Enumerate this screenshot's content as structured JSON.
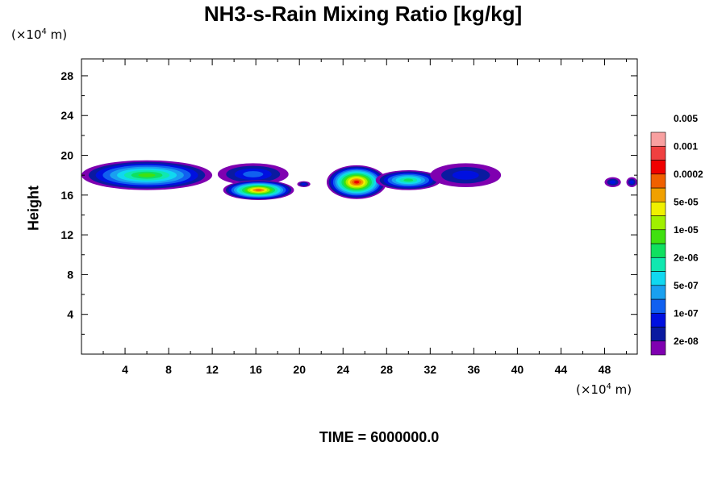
{
  "chart_data": {
    "type": "heatmap",
    "title": "NH3-s-Rain Mixing Ratio [kg/kg]",
    "subtitle": "TIME = 6000000.0",
    "ylabel": "Height",
    "xlabel": "",
    "x_unit_label": "(×10",
    "x_unit_exp": "4",
    "x_unit_suffix": " m)",
    "y_unit_label": "(×10",
    "y_unit_exp": "4",
    "y_unit_suffix": " m)",
    "xlim": [
      0,
      51
    ],
    "ylim": [
      0,
      29.7
    ],
    "x_ticks": [
      4,
      8,
      12,
      16,
      20,
      24,
      28,
      32,
      36,
      40,
      44,
      48
    ],
    "y_ticks": [
      4,
      8,
      12,
      16,
      20,
      24,
      28
    ],
    "colorbar": {
      "colors": [
        "#7f00b0",
        "#0a1aa0",
        "#0010e0",
        "#1060f0",
        "#1aa0f0",
        "#10d8f0",
        "#10e8b0",
        "#10e060",
        "#40e010",
        "#a0f000",
        "#f0f000",
        "#f0a000",
        "#f06000",
        "#f00000",
        "#f04040",
        "#f8a0a0"
      ],
      "labels": [
        "2e-08",
        "1e-07",
        "5e-07",
        "2e-06",
        "1e-05",
        "5e-05",
        "0.0002",
        "0.001",
        "0.005"
      ]
    },
    "features": [
      {
        "x0": 0.0,
        "x1": 12.0,
        "y0": 16.5,
        "y1": 19.5,
        "peak": 8
      },
      {
        "x0": 12.5,
        "x1": 19.0,
        "y0": 17.0,
        "y1": 19.2,
        "peak": 3
      },
      {
        "x0": 13.0,
        "x1": 19.5,
        "y0": 15.5,
        "y1": 17.5,
        "peak": 12
      },
      {
        "x0": 19.8,
        "x1": 21.0,
        "y0": 16.8,
        "y1": 17.4,
        "peak": 2
      },
      {
        "x0": 22.5,
        "x1": 28.0,
        "y0": 15.6,
        "y1": 19.0,
        "peak": 13
      },
      {
        "x0": 27.0,
        "x1": 33.0,
        "y0": 16.5,
        "y1": 18.5,
        "peak": 7
      },
      {
        "x0": 32.0,
        "x1": 38.5,
        "y0": 16.8,
        "y1": 19.2,
        "peak": 2
      },
      {
        "x0": 48.0,
        "x1": 49.5,
        "y0": 16.8,
        "y1": 17.8,
        "peak": 2
      },
      {
        "x0": 50.0,
        "x1": 51.0,
        "y0": 16.8,
        "y1": 17.8,
        "peak": 2
      }
    ]
  }
}
